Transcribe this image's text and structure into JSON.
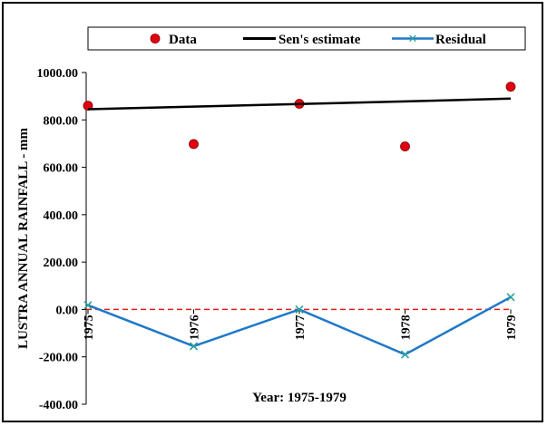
{
  "chart_data": {
    "type": "line",
    "title": "",
    "xlabel": "Year: 1975-1979",
    "ylabel": "LUSTRA ANNUAL RAINFALL - mm",
    "categories": [
      "1975",
      "1976",
      "1977",
      "1978",
      "1979"
    ],
    "ylim": [
      -400,
      1000
    ],
    "yticks": [
      "1000.00",
      "800.00",
      "600.00",
      "400.00",
      "200.00",
      "0.00",
      "-200.00",
      "-400.00"
    ],
    "legend_position": "top",
    "grid": false,
    "series": [
      {
        "name": "Data",
        "kind": "scatter",
        "color": "#e3000f",
        "values": [
          860,
          698,
          868,
          688,
          940
        ]
      },
      {
        "name": "Sen's estimate",
        "kind": "line",
        "color": "#000000",
        "values": [
          845,
          856,
          867,
          878,
          890
        ]
      },
      {
        "name": "Residual",
        "kind": "line-marker",
        "color": "#1f78c8",
        "marker_color": "#2aa198",
        "values": [
          18,
          -155,
          0,
          -190,
          52
        ]
      }
    ],
    "zero_line": {
      "value": 0,
      "color": "#e0201a",
      "style": "dashed"
    }
  }
}
